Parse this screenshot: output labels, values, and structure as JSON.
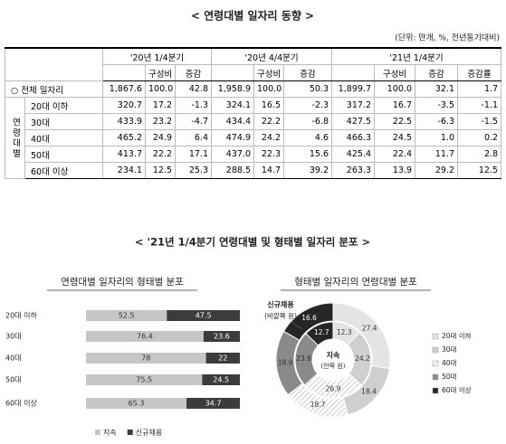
{
  "header": {
    "title": "< 연령대별 일자리 동향 >",
    "unit": "(단위: 만개, %, 전년동기대비)"
  },
  "table": {
    "groups": [
      "'20년 1/4분기",
      "'20년 4/4분기",
      "'21년 1/4분기"
    ],
    "subheaders": [
      [
        "구성비",
        "증감"
      ],
      [
        "구성비",
        "증감"
      ],
      [
        "구성비",
        "증감",
        "증감률"
      ]
    ],
    "row_group": "연령대별",
    "rows": [
      {
        "label": "○ 전체 일자리",
        "values": [
          "1,867.6",
          "100.0",
          "42.8",
          "1,958.9",
          "100.0",
          "50.3",
          "1,899.7",
          "100.0",
          "32.1",
          "1.7"
        ]
      },
      {
        "label": "20대 이하",
        "values": [
          "320.7",
          "17.2",
          "-1.3",
          "324.1",
          "16.5",
          "-2.3",
          "317.2",
          "16.7",
          "-3.5",
          "-1.1"
        ]
      },
      {
        "label": "30대",
        "values": [
          "433.9",
          "23.2",
          "-4.7",
          "434.4",
          "22.2",
          "-6.8",
          "427.5",
          "22.5",
          "-6.3",
          "-1.5"
        ]
      },
      {
        "label": "40대",
        "values": [
          "465.2",
          "24.9",
          "6.4",
          "474.9",
          "24.2",
          "4.6",
          "466.3",
          "24.5",
          "1.0",
          "0.2"
        ]
      },
      {
        "label": "50대",
        "values": [
          "413.7",
          "22.2",
          "17.1",
          "437.0",
          "22.3",
          "15.6",
          "425.4",
          "22.4",
          "11.7",
          "2.8"
        ]
      },
      {
        "label": "60대 이상",
        "values": [
          "234.1",
          "12.5",
          "25.3",
          "288.5",
          "14.7",
          "39.2",
          "263.3",
          "13.9",
          "29.2",
          "12.5"
        ]
      }
    ]
  },
  "section_title": "< '21년 1/4분기 연령대별 및 형태별 일자리 분포 >",
  "chart_data": [
    {
      "type": "stacked-bar-horizontal",
      "title": "연령대별 일자리의 형태별 분포",
      "categories": [
        "20대 이하",
        "30대",
        "40대",
        "50대",
        "60대 이상"
      ],
      "series": [
        {
          "name": "지속",
          "color": "#c6c6c6",
          "values": [
            52.5,
            76.4,
            78.0,
            75.5,
            65.3
          ]
        },
        {
          "name": "신규채용",
          "color": "#3c3c3c",
          "values": [
            47.5,
            23.6,
            22.0,
            24.5,
            34.7
          ]
        }
      ],
      "xlim": [
        0,
        100
      ],
      "legend": "bottom"
    },
    {
      "type": "donut",
      "title": "형태별 일자리의 연령대별 분포",
      "categories": [
        "20대 이하",
        "30대",
        "40대",
        "50대",
        "60대 이상"
      ],
      "colors": [
        "#e4e4e4",
        "#cfcfcf",
        "#ffffff",
        "#8a8a8a",
        "#262626"
      ],
      "hatched_index": 2,
      "series": [
        {
          "name": "신규채용",
          "ring_label": "(바깥쪽 원)",
          "values": [
            27.4,
            18.4,
            18.7,
            18.9,
            16.6
          ]
        },
        {
          "name": "지속",
          "ring_label": "(안쪽 원)",
          "values": [
            12.3,
            24.2,
            26.9,
            23.8,
            12.7
          ]
        }
      ],
      "legend": "right"
    }
  ]
}
